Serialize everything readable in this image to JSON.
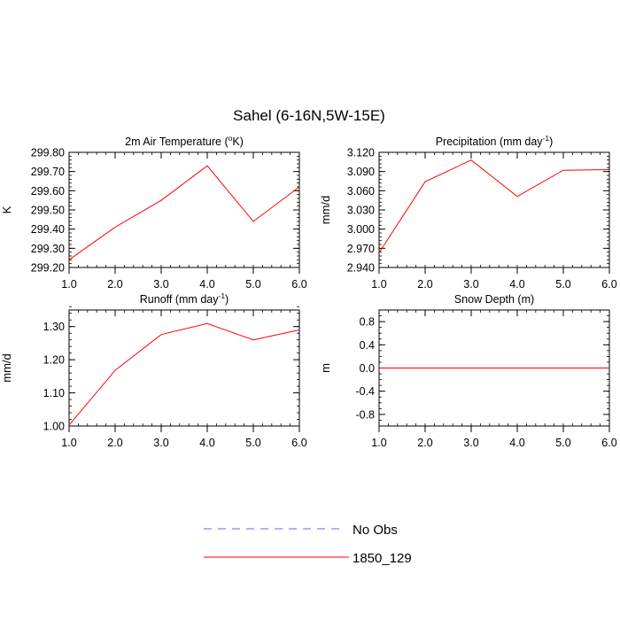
{
  "title": "Sahel (6-16N,5W-15E)",
  "colors": {
    "series": "#ff0000",
    "obs": "#6666ff",
    "axis": "#000000"
  },
  "legend": [
    {
      "label": "No Obs",
      "style": "dashed",
      "color": "#6666ff"
    },
    {
      "label": "1850_129",
      "style": "solid",
      "color": "#ff0000"
    }
  ],
  "chart_data": [
    {
      "type": "line",
      "title": "2m Air Temperature (°K)",
      "title_main": "2m Air Temperature (",
      "title_sup": "o",
      "title_end": "K)",
      "ylabel": "K",
      "xlim": [
        1.0,
        6.0
      ],
      "ylim": [
        299.2,
        299.8
      ],
      "xticks": [
        "1.0",
        "2.0",
        "3.0",
        "4.0",
        "5.0",
        "6.0"
      ],
      "yticks": [
        {
          "v": 299.2,
          "label": "299.20"
        },
        {
          "v": 299.3,
          "label": "299.30"
        },
        {
          "v": 299.4,
          "label": "299.40"
        },
        {
          "v": 299.5,
          "label": "299.50"
        },
        {
          "v": 299.6,
          "label": "299.60"
        },
        {
          "v": 299.7,
          "label": "299.70"
        },
        {
          "v": 299.8,
          "label": "299.80"
        }
      ],
      "yminor": 0.02,
      "series": [
        {
          "name": "1850_129",
          "x": [
            1,
            2,
            3,
            4,
            5,
            6
          ],
          "y": [
            299.24,
            299.41,
            299.55,
            299.73,
            299.44,
            299.62
          ]
        }
      ]
    },
    {
      "type": "line",
      "title": "Precipitation (mm day-1)",
      "title_main": "Precipitation (mm day",
      "title_sup": "-1",
      "title_end": ")",
      "ylabel": "mm/d",
      "xlim": [
        1.0,
        6.0
      ],
      "ylim": [
        2.94,
        3.12
      ],
      "xticks": [
        "1.0",
        "2.0",
        "3.0",
        "4.0",
        "5.0",
        "6.0"
      ],
      "yticks": [
        {
          "v": 2.94,
          "label": "2.940"
        },
        {
          "v": 2.97,
          "label": "2.970"
        },
        {
          "v": 3.0,
          "label": "3.000"
        },
        {
          "v": 3.03,
          "label": "3.030"
        },
        {
          "v": 3.06,
          "label": "3.060"
        },
        {
          "v": 3.09,
          "label": "3.090"
        },
        {
          "v": 3.12,
          "label": "3.120"
        }
      ],
      "yminor": 0.006,
      "series": [
        {
          "name": "1850_129",
          "x": [
            1,
            2,
            3,
            4,
            5,
            6
          ],
          "y": [
            2.963,
            3.074,
            3.108,
            3.051,
            3.092,
            3.093
          ]
        }
      ]
    },
    {
      "type": "line",
      "title": "Runoff (mm day-1)",
      "title_main": "Runoff (mm day",
      "title_sup": "-1",
      "title_end": ")",
      "ylabel": "mm/d",
      "xlim": [
        1.0,
        6.0
      ],
      "ylim": [
        1.0,
        1.35
      ],
      "xticks": [
        "1.0",
        "2.0",
        "3.0",
        "4.0",
        "5.0",
        "6.0"
      ],
      "yticks": [
        {
          "v": 1.0,
          "label": "1.00"
        },
        {
          "v": 1.1,
          "label": "1.10"
        },
        {
          "v": 1.2,
          "label": "1.20"
        },
        {
          "v": 1.3,
          "label": "1.30"
        }
      ],
      "yminor": 0.02,
      "series": [
        {
          "name": "1850_129",
          "x": [
            1,
            2,
            3,
            4,
            5,
            6
          ],
          "y": [
            1.003,
            1.168,
            1.276,
            1.309,
            1.26,
            1.29
          ]
        }
      ]
    },
    {
      "type": "line",
      "title": "Snow Depth (m)",
      "title_main": "Snow Depth (m)",
      "title_sup": "",
      "title_end": "",
      "ylabel": "m",
      "xlim": [
        1.0,
        6.0
      ],
      "ylim": [
        -1.0,
        1.0
      ],
      "xticks": [
        "1.0",
        "2.0",
        "3.0",
        "4.0",
        "5.0",
        "6.0"
      ],
      "yticks": [
        {
          "v": -0.8,
          "label": "-0.8"
        },
        {
          "v": -0.4,
          "label": "-0.4"
        },
        {
          "v": 0.0,
          "label": "0.0"
        },
        {
          "v": 0.4,
          "label": "0.4"
        },
        {
          "v": 0.8,
          "label": "0.8"
        }
      ],
      "yminor": 0.1,
      "series": [
        {
          "name": "1850_129",
          "x": [
            1,
            2,
            3,
            4,
            5,
            6
          ],
          "y": [
            0,
            0,
            0,
            0,
            0,
            0
          ]
        }
      ]
    }
  ]
}
